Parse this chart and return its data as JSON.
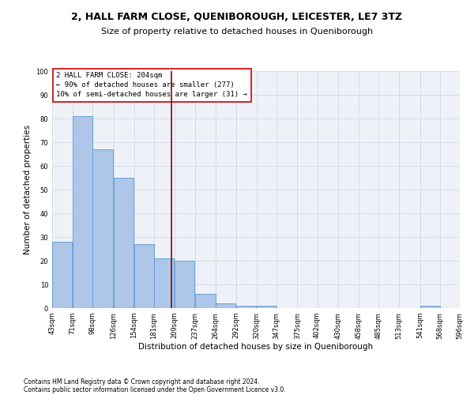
{
  "title": "2, HALL FARM CLOSE, QUENIBOROUGH, LEICESTER, LE7 3TZ",
  "subtitle": "Size of property relative to detached houses in Queniborough",
  "xlabel": "Distribution of detached houses by size in Queniborough",
  "ylabel": "Number of detached properties",
  "footnote1": "Contains HM Land Registry data © Crown copyright and database right 2024.",
  "footnote2": "Contains public sector information licensed under the Open Government Licence v3.0.",
  "annotation_title": "2 HALL FARM CLOSE: 204sqm",
  "annotation_line1": "← 90% of detached houses are smaller (277)",
  "annotation_line2": "10% of semi-detached houses are larger (31) →",
  "bar_left_edges": [
    43,
    71,
    98,
    126,
    154,
    181,
    209,
    237,
    264,
    292,
    320,
    347,
    375,
    402,
    430,
    458,
    485,
    513,
    541,
    568
  ],
  "bar_heights": [
    28,
    81,
    67,
    55,
    27,
    21,
    20,
    6,
    2,
    1,
    1,
    0,
    0,
    0,
    0,
    0,
    0,
    0,
    1,
    0
  ],
  "bin_width": 27,
  "bar_color": "#aec6e8",
  "bar_edge_color": "#5b9bd5",
  "vline_x": 204,
  "vline_color": "#8b0000",
  "tick_labels": [
    "43sqm",
    "71sqm",
    "98sqm",
    "126sqm",
    "154sqm",
    "181sqm",
    "209sqm",
    "237sqm",
    "264sqm",
    "292sqm",
    "320sqm",
    "347sqm",
    "375sqm",
    "402sqm",
    "430sqm",
    "458sqm",
    "485sqm",
    "513sqm",
    "541sqm",
    "568sqm",
    "596sqm"
  ],
  "ylim": [
    0,
    100
  ],
  "yticks": [
    0,
    10,
    20,
    30,
    40,
    50,
    60,
    70,
    80,
    90,
    100
  ],
  "grid_color": "#d0d8e8",
  "bg_color": "#eef2f8",
  "annotation_box_color": "#ffffff",
  "annotation_box_edge": "#cc0000",
  "title_fontsize": 9,
  "subtitle_fontsize": 8,
  "xlabel_fontsize": 7.5,
  "ylabel_fontsize": 7.5,
  "tick_fontsize": 6,
  "annotation_fontsize": 6.5,
  "footnote_fontsize": 5.5
}
